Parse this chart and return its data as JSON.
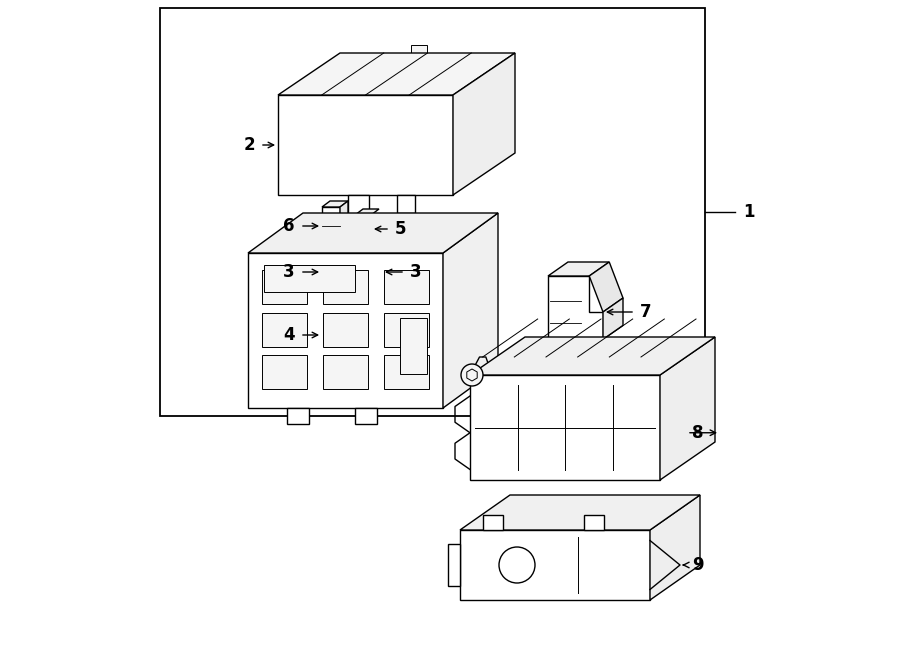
{
  "bg_color": "#ffffff",
  "line_color": "#000000",
  "lw": 1.0,
  "fig_width": 9.0,
  "fig_height": 6.61,
  "dpi": 100
}
